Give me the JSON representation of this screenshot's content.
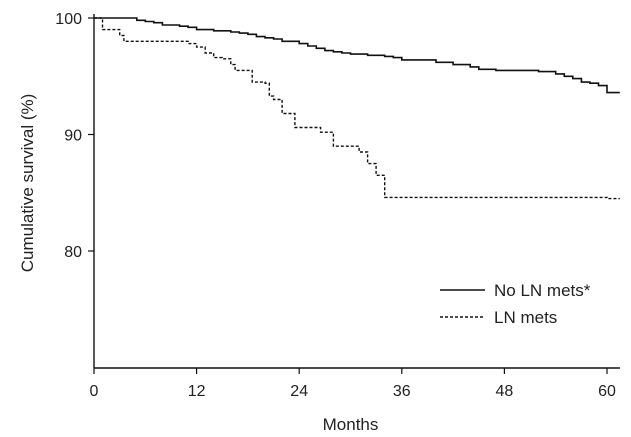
{
  "chart_data": {
    "type": "line",
    "title": "",
    "xlabel": "Months",
    "ylabel": "Cumulative survival (%)",
    "xlim": [
      0,
      61.5
    ],
    "ylim": [
      70,
      100
    ],
    "x_ticks": [
      0,
      12,
      24,
      36,
      48,
      60
    ],
    "y_ticks": [
      80,
      90,
      100
    ],
    "grid": false,
    "legend_position": "bottom-right",
    "series": [
      {
        "name": "No LN mets*",
        "style": "solid",
        "color": "#111111",
        "points": [
          [
            0,
            100
          ],
          [
            1,
            100
          ],
          [
            4,
            100
          ],
          [
            5,
            99.8
          ],
          [
            6,
            99.7
          ],
          [
            7,
            99.6
          ],
          [
            8,
            99.4
          ],
          [
            10,
            99.3
          ],
          [
            11,
            99.2
          ],
          [
            12,
            99.0
          ],
          [
            14,
            98.9
          ],
          [
            16,
            98.8
          ],
          [
            17,
            98.7
          ],
          [
            18,
            98.6
          ],
          [
            19,
            98.4
          ],
          [
            20,
            98.3
          ],
          [
            21,
            98.2
          ],
          [
            22,
            98.0
          ],
          [
            24,
            97.8
          ],
          [
            25,
            97.6
          ],
          [
            26,
            97.4
          ],
          [
            27,
            97.2
          ],
          [
            28,
            97.1
          ],
          [
            29,
            97.0
          ],
          [
            30,
            96.9
          ],
          [
            32,
            96.8
          ],
          [
            34,
            96.7
          ],
          [
            35,
            96.6
          ],
          [
            36,
            96.4
          ],
          [
            40,
            96.2
          ],
          [
            42,
            96.0
          ],
          [
            44,
            95.8
          ],
          [
            45,
            95.6
          ],
          [
            47,
            95.5
          ],
          [
            52,
            95.4
          ],
          [
            54,
            95.2
          ],
          [
            55,
            95.0
          ],
          [
            56,
            94.8
          ],
          [
            57,
            94.5
          ],
          [
            58,
            94.4
          ],
          [
            59,
            94.2
          ],
          [
            60,
            93.6
          ],
          [
            61.5,
            93.6
          ]
        ]
      },
      {
        "name": "LN mets",
        "style": "dashed",
        "color": "#111111",
        "points": [
          [
            0,
            100
          ],
          [
            1,
            99.0
          ],
          [
            2.5,
            99.0
          ],
          [
            3,
            98.5
          ],
          [
            3.5,
            98.0
          ],
          [
            8,
            98.0
          ],
          [
            11,
            97.8
          ],
          [
            12,
            97.5
          ],
          [
            13,
            97.0
          ],
          [
            14,
            96.6
          ],
          [
            15,
            96.5
          ],
          [
            16,
            96.0
          ],
          [
            16.5,
            95.5
          ],
          [
            18,
            95.5
          ],
          [
            18.5,
            94.5
          ],
          [
            20,
            94.4
          ],
          [
            20.5,
            93.3
          ],
          [
            21,
            93.0
          ],
          [
            22,
            91.8
          ],
          [
            23,
            91.8
          ],
          [
            23.5,
            90.6
          ],
          [
            26,
            90.6
          ],
          [
            26.5,
            90.2
          ],
          [
            27,
            90.2
          ],
          [
            28,
            89.0
          ],
          [
            30,
            89.0
          ],
          [
            31,
            88.5
          ],
          [
            32,
            87.5
          ],
          [
            33,
            86.5
          ],
          [
            34,
            84.6
          ],
          [
            60,
            84.5
          ],
          [
            61.5,
            84.5
          ]
        ]
      }
    ]
  }
}
